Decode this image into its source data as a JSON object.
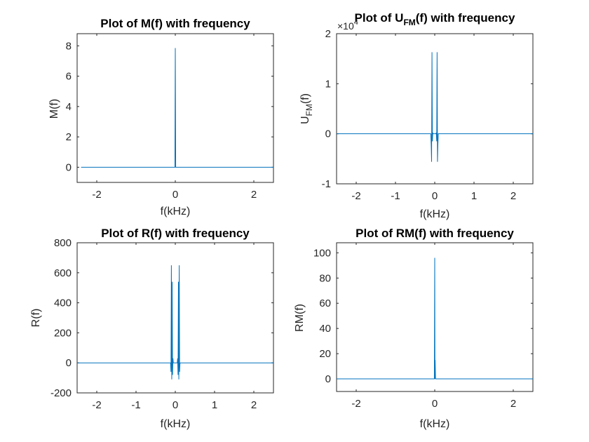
{
  "chart_data": [
    {
      "type": "line",
      "title": "Plot of M(f) with frequency",
      "xlabel": "f(kHz)",
      "ylabel": "M(f)",
      "xlim": [
        -2.5,
        2.5
      ],
      "ylim": [
        -1,
        8.8
      ],
      "xticks": [
        -2,
        0,
        2
      ],
      "yticks": [
        0,
        2,
        4,
        6,
        8
      ],
      "grid": false,
      "color": "#0072BD",
      "series": [
        {
          "x": [
            -2.4,
            -0.01,
            0,
            0.01,
            2.5
          ],
          "y": [
            0,
            0,
            7.85,
            0,
            0
          ]
        }
      ]
    },
    {
      "type": "line",
      "title": "Plot of U",
      "title_sub": "FM",
      "title_rest": "(f) with frequency",
      "xlabel": "f(kHz)",
      "ylabel": "U",
      "ylabel_sub": "FM",
      "ylabel_rest": "(f)",
      "y_exponent": "×10",
      "xlim": [
        -2.5,
        2.5
      ],
      "ylim": [
        -1,
        2
      ],
      "xticks": [
        -2,
        -1,
        0,
        1,
        2
      ],
      "yticks": [
        -1,
        0,
        1,
        2
      ],
      "grid": false,
      "color": "#0072BD",
      "series": [
        {
          "x": [
            -2.5,
            -0.11,
            -0.1,
            -0.09,
            -0.08,
            -0.07,
            -0.06,
            -0.05,
            -0.04,
            -0.03,
            0.03,
            0.04,
            0.05,
            0.06,
            0.07,
            0.08,
            0.09,
            0.1,
            2.5
          ],
          "y": [
            0,
            0,
            0,
            -0.22,
            -0.56,
            1.63,
            -0.15,
            0.02,
            0,
            0,
            0,
            0.02,
            -0.15,
            1.63,
            -0.56,
            -0.22,
            0,
            0,
            0
          ]
        }
      ]
    },
    {
      "type": "line",
      "title": "Plot of R(f) with frequency",
      "xlabel": "f(kHz)",
      "ylabel": "R(f)",
      "xlim": [
        -2.5,
        2.5
      ],
      "ylim": [
        -200,
        800
      ],
      "xticks": [
        -2,
        -1,
        0,
        1,
        2
      ],
      "yticks": [
        -200,
        0,
        200,
        400,
        600,
        800
      ],
      "grid": false,
      "color": "#0072BD",
      "series": [
        {
          "x": [
            -2.5,
            -0.12,
            -0.11,
            -0.1,
            -0.09,
            -0.08,
            -0.07,
            -0.06,
            -0.05,
            0.05,
            0.06,
            0.07,
            0.08,
            0.09,
            0.1,
            0.11,
            0.12,
            2.5
          ],
          "y": [
            0,
            0,
            -60,
            650,
            -110,
            540,
            -80,
            30,
            0,
            0,
            30,
            -80,
            540,
            -110,
            650,
            -60,
            0,
            0
          ]
        }
      ]
    },
    {
      "type": "line",
      "title": "Plot of RM(f) with frequency",
      "xlabel": "f(kHz)",
      "ylabel": "RM(f)",
      "xlim": [
        -2.5,
        2.5
      ],
      "ylim": [
        -10,
        108
      ],
      "xticks": [
        -2,
        0,
        2
      ],
      "yticks": [
        0,
        20,
        40,
        60,
        80,
        100
      ],
      "grid": false,
      "color": "#0072BD",
      "series": [
        {
          "x": [
            -2.5,
            -0.01,
            0,
            0.005,
            0.01,
            0.02,
            2.5
          ],
          "y": [
            0,
            0,
            96,
            0,
            15,
            0,
            0
          ]
        }
      ]
    }
  ]
}
